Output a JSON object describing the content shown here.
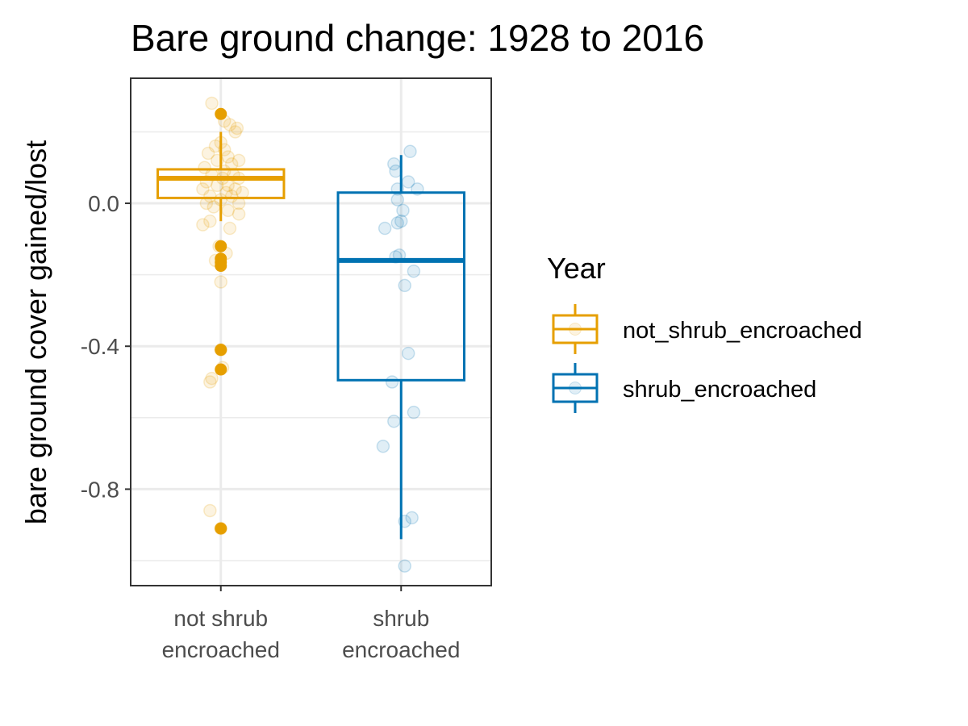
{
  "chart_data": {
    "type": "boxplot",
    "title": "Bare ground change: 1928 to 2016",
    "xlabel": "",
    "ylabel": "bare ground cover gained/lost",
    "ylim": [
      -1.07,
      0.35
    ],
    "yticks": [
      0.0,
      -0.4,
      -0.8
    ],
    "ytick_labels": [
      "0.0",
      "-0.4",
      "-0.8"
    ],
    "grid": true,
    "legend": {
      "title": "Year",
      "position": "right",
      "entries": [
        "not_shrub_encroached",
        "shrub_encroached"
      ]
    },
    "categories": [
      {
        "label_lines": [
          "not shrub",
          "encroached"
        ],
        "legend_name": "not_shrub_encroached",
        "color": "#E69F00",
        "box": {
          "q1": 0.015,
          "median": 0.07,
          "q3": 0.095,
          "whisker_low": -0.05,
          "whisker_high": 0.2
        },
        "outliers": [
          0.25,
          -0.12,
          -0.155,
          -0.165,
          -0.175,
          -0.41,
          -0.465,
          -0.91
        ],
        "jitter_points": [
          [
            0.28,
            -0.05
          ],
          [
            0.23,
            0.02
          ],
          [
            0.22,
            0.05
          ],
          [
            0.21,
            0.09
          ],
          [
            0.2,
            0.08
          ],
          [
            0.17,
            0.0
          ],
          [
            0.16,
            -0.03
          ],
          [
            0.15,
            0.02
          ],
          [
            0.14,
            -0.07
          ],
          [
            0.13,
            0.04
          ],
          [
            0.12,
            0.1
          ],
          [
            0.12,
            -0.02
          ],
          [
            0.11,
            0.06
          ],
          [
            0.1,
            -0.09
          ],
          [
            0.09,
            0.02
          ],
          [
            0.08,
            0.07
          ],
          [
            0.08,
            -0.05
          ],
          [
            0.07,
            0.01
          ],
          [
            0.07,
            0.1
          ],
          [
            0.06,
            -0.08
          ],
          [
            0.05,
            0.04
          ],
          [
            0.05,
            -0.02
          ],
          [
            0.04,
            0.08
          ],
          [
            0.04,
            -0.1
          ],
          [
            0.03,
            0.03
          ],
          [
            0.03,
            0.12
          ],
          [
            0.02,
            -0.06
          ],
          [
            0.02,
            0.06
          ],
          [
            0.01,
            0.0
          ],
          [
            0.0,
            -0.08
          ],
          [
            0.0,
            0.1
          ],
          [
            -0.01,
            -0.04
          ],
          [
            -0.02,
            0.04
          ],
          [
            -0.03,
            0.1
          ],
          [
            -0.05,
            -0.06
          ],
          [
            -0.06,
            -0.1
          ],
          [
            -0.07,
            0.05
          ],
          [
            -0.12,
            -0.01
          ],
          [
            -0.14,
            0.03
          ],
          [
            -0.16,
            -0.03
          ],
          [
            -0.22,
            0.0
          ],
          [
            -0.41,
            0.0
          ],
          [
            -0.46,
            0.01
          ],
          [
            -0.49,
            -0.05
          ],
          [
            -0.5,
            -0.06
          ],
          [
            -0.86,
            -0.06
          ],
          [
            -0.91,
            0.0
          ]
        ]
      },
      {
        "label_lines": [
          "shrub",
          "encroached"
        ],
        "legend_name": "shrub_encroached",
        "color": "#0072B2",
        "box": {
          "q1": -0.495,
          "median": -0.16,
          "q3": 0.03,
          "whisker_low": -0.94,
          "whisker_high": 0.135
        },
        "outliers": [],
        "jitter_points": [
          [
            0.145,
            0.05
          ],
          [
            0.11,
            -0.04
          ],
          [
            0.09,
            -0.03
          ],
          [
            0.06,
            0.04
          ],
          [
            0.04,
            0.09
          ],
          [
            0.04,
            -0.02
          ],
          [
            0.01,
            -0.02
          ],
          [
            -0.02,
            0.01
          ],
          [
            -0.05,
            0.0
          ],
          [
            -0.055,
            -0.02
          ],
          [
            -0.07,
            -0.09
          ],
          [
            -0.145,
            -0.01
          ],
          [
            -0.15,
            -0.03
          ],
          [
            -0.19,
            0.07
          ],
          [
            -0.23,
            0.02
          ],
          [
            -0.42,
            0.04
          ],
          [
            -0.5,
            -0.05
          ],
          [
            -0.585,
            0.07
          ],
          [
            -0.61,
            -0.04
          ],
          [
            -0.68,
            -0.1
          ],
          [
            -0.88,
            0.06
          ],
          [
            -0.89,
            0.02
          ],
          [
            -1.015,
            0.02
          ]
        ]
      }
    ]
  }
}
